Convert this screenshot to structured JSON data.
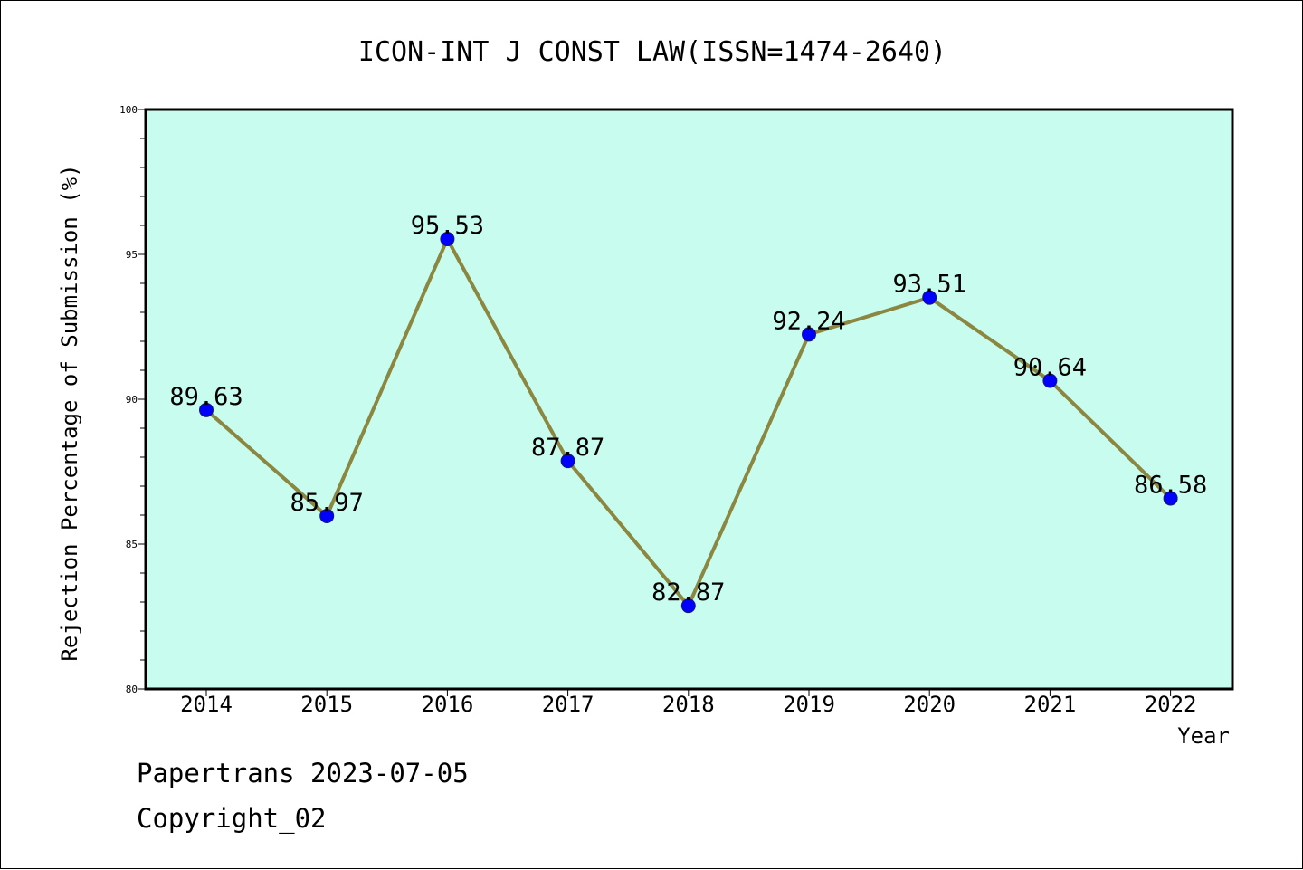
{
  "chart_data": {
    "type": "line",
    "title": "ICON-INT J CONST LAW(ISSN=1474-2640)",
    "xlabel": "Year",
    "ylabel": "Rejection Percentage of Submission (%)",
    "categories": [
      "2014",
      "2015",
      "2016",
      "2017",
      "2018",
      "2019",
      "2020",
      "2021",
      "2022"
    ],
    "series": [
      {
        "values": [
          89.63,
          85.97,
          95.53,
          87.87,
          82.87,
          92.24,
          93.51,
          90.64,
          86.58
        ]
      }
    ],
    "data_labels": [
      "89.63",
      "85.97",
      "95.53",
      "87.87",
      "82.87",
      "92.24",
      "93.51",
      "90.64",
      "86.58"
    ],
    "ylim": [
      80,
      100
    ],
    "yticks": [
      "80",
      "85",
      "90",
      "95",
      "100"
    ],
    "grid": false,
    "colors": {
      "plot_background": "#c8fcee",
      "line": "#8b8640",
      "marker": "#0000ff"
    }
  },
  "footer": {
    "line1": "Papertrans 2023-07-05",
    "line2": "Copyright_02"
  }
}
